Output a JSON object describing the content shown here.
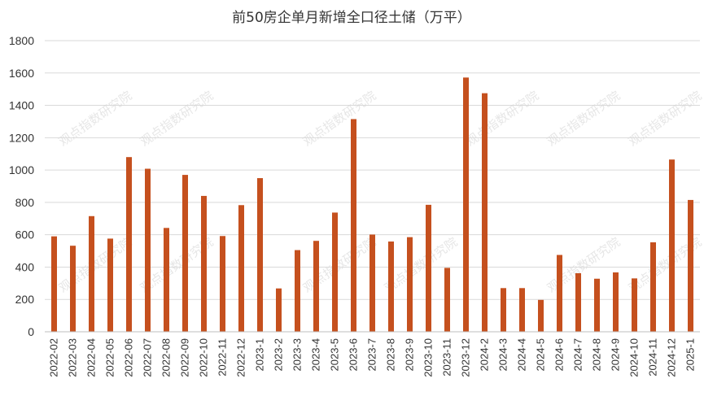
{
  "colors": {
    "bar": "#C5501E",
    "grid": "#d9d9d9",
    "text": "#333333"
  },
  "watermark": "观点指数研究院",
  "chart_data": {
    "type": "bar",
    "title": "前50房企单月新增全口径土储（万平）",
    "xlabel": "",
    "ylabel": "",
    "ylim": [
      0,
      1800
    ],
    "yticks": [
      0,
      200,
      400,
      600,
      800,
      1000,
      1200,
      1400,
      1600,
      1800
    ],
    "grid": true,
    "legend": "none",
    "categories": [
      "2022-02",
      "2022-03",
      "2022-04",
      "2022-05",
      "2022-06",
      "2022-07",
      "2022-08",
      "2022-09",
      "2022-10",
      "2022-11",
      "2022-12",
      "2023-1",
      "2023-2",
      "2023-3",
      "2023-4",
      "2023-5",
      "2023-6",
      "2023-7",
      "2023-8",
      "2023-9",
      "2023-10",
      "2023-11",
      "2023-12",
      "2024-2",
      "2024-3",
      "2024-4",
      "2024-5",
      "2024-6",
      "2024-7",
      "2024-8",
      "2024-9",
      "2024-10",
      "2024-11",
      "2024-12",
      "2025-1"
    ],
    "values": [
      590,
      532,
      715,
      576,
      1080,
      1008,
      642,
      970,
      840,
      592,
      783,
      950,
      268,
      505,
      562,
      737,
      1315,
      601,
      558,
      585,
      785,
      395,
      1572,
      1475,
      270,
      270,
      197,
      475,
      362,
      328,
      367,
      330,
      553,
      1065,
      815
    ]
  }
}
